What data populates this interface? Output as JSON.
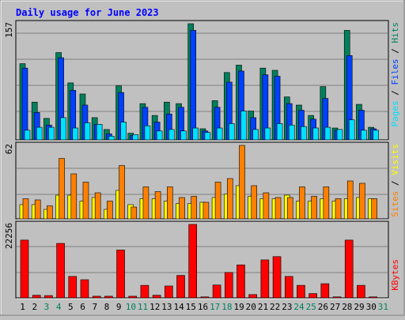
{
  "title": "Daily usage for June 2023",
  "colors": {
    "background": "#c0c0c0",
    "title": "#0000ff",
    "hits": "#00805c",
    "files": "#0040ff",
    "pages": "#00e0ff",
    "visits": "#ffff00",
    "sites": "#ff8000",
    "kbytes": "#ff0000",
    "weekend_label": "#00805c",
    "weekday_label": "#000000"
  },
  "chart_data": [
    {
      "type": "bar",
      "name": "hits-files-pages",
      "x": [
        1,
        2,
        3,
        4,
        5,
        6,
        7,
        8,
        9,
        10,
        11,
        12,
        13,
        14,
        15,
        16,
        17,
        18,
        19,
        20,
        21,
        22,
        23,
        24,
        25,
        26,
        27,
        28,
        29,
        30
      ],
      "ymax_label": "157",
      "ylim": [
        0,
        157
      ],
      "series": [
        {
          "name": "Hits",
          "values": [
            103,
            51,
            29,
            118,
            77,
            62,
            30,
            14,
            73,
            9,
            49,
            33,
            51,
            49,
            157,
            15,
            53,
            91,
            101,
            39,
            97,
            94,
            58,
            47,
            33,
            72,
            16,
            148,
            48,
            17
          ]
        },
        {
          "name": "Files",
          "values": [
            97,
            37,
            20,
            111,
            67,
            47,
            21,
            8,
            64,
            6,
            44,
            24,
            35,
            44,
            148,
            12,
            44,
            78,
            93,
            30,
            88,
            86,
            49,
            40,
            28,
            56,
            13,
            114,
            40,
            15
          ]
        },
        {
          "name": "Pages",
          "values": [
            13,
            17,
            17,
            30,
            16,
            23,
            21,
            5,
            24,
            7,
            19,
            12,
            14,
            12,
            16,
            10,
            16,
            22,
            39,
            14,
            16,
            22,
            20,
            18,
            16,
            17,
            14,
            27,
            13,
            13
          ]
        }
      ]
    },
    {
      "type": "bar",
      "name": "visits-sites",
      "x": [
        1,
        2,
        3,
        4,
        5,
        6,
        7,
        8,
        9,
        10,
        11,
        12,
        13,
        14,
        15,
        16,
        17,
        18,
        19,
        20,
        21,
        22,
        23,
        24,
        25,
        26,
        27,
        28,
        29,
        30
      ],
      "ymax_label": "62",
      "ylim": [
        0,
        62
      ],
      "series": [
        {
          "name": "Visits",
          "values": [
            12,
            12,
            8,
            20,
            20,
            15,
            18,
            8,
            24,
            12,
            17,
            17,
            15,
            13,
            13,
            14,
            18,
            21,
            28,
            19,
            17,
            17,
            20,
            15,
            15,
            17,
            15,
            17,
            18,
            17
          ]
        },
        {
          "name": "Sites",
          "values": [
            17,
            16,
            11,
            51,
            38,
            31,
            22,
            15,
            45,
            10,
            27,
            23,
            27,
            18,
            19,
            14,
            31,
            34,
            62,
            28,
            22,
            18,
            18,
            27,
            19,
            27,
            17,
            32,
            30,
            17
          ]
        }
      ]
    },
    {
      "type": "bar",
      "name": "kbytes",
      "x": [
        1,
        2,
        3,
        4,
        5,
        6,
        7,
        8,
        9,
        10,
        11,
        12,
        13,
        14,
        15,
        16,
        17,
        18,
        19,
        20,
        21,
        22,
        23,
        24,
        25,
        26,
        27,
        28,
        29,
        30
      ],
      "ymax_label": "22256",
      "ylim": [
        0,
        22256
      ],
      "series": [
        {
          "name": "KBytes",
          "values": [
            17500,
            800,
            700,
            16500,
            6500,
            5500,
            500,
            500,
            14500,
            500,
            3800,
            800,
            3600,
            6800,
            22256,
            300,
            3900,
            7700,
            10000,
            1000,
            11500,
            12500,
            6500,
            3800,
            1300,
            4300,
            300,
            17500,
            3800,
            300
          ]
        }
      ]
    }
  ],
  "x_axis": {
    "labels": [
      "1",
      "2",
      "3",
      "4",
      "5",
      "6",
      "7",
      "8",
      "9",
      "10",
      "11",
      "12",
      "13",
      "14",
      "15",
      "16",
      "17",
      "18",
      "19",
      "20",
      "21",
      "22",
      "23",
      "24",
      "25",
      "26",
      "27",
      "28",
      "29",
      "30",
      "31"
    ],
    "weekend": [
      3,
      4,
      10,
      11,
      17,
      18,
      24,
      25,
      31
    ]
  },
  "right_labels": {
    "panel1": [
      {
        "text": "Pages",
        "color": "#00e0ff"
      },
      {
        "text": " / ",
        "color": "#000000"
      },
      {
        "text": "Files",
        "color": "#0040ff"
      },
      {
        "text": " / ",
        "color": "#000000"
      },
      {
        "text": "Hits",
        "color": "#00805c"
      }
    ],
    "panel2": [
      {
        "text": "Sites",
        "color": "#ff8000"
      },
      {
        "text": " / ",
        "color": "#000000"
      },
      {
        "text": "Visits",
        "color": "#ffff00"
      }
    ],
    "panel3": [
      {
        "text": "KBytes",
        "color": "#ff0000"
      }
    ]
  }
}
